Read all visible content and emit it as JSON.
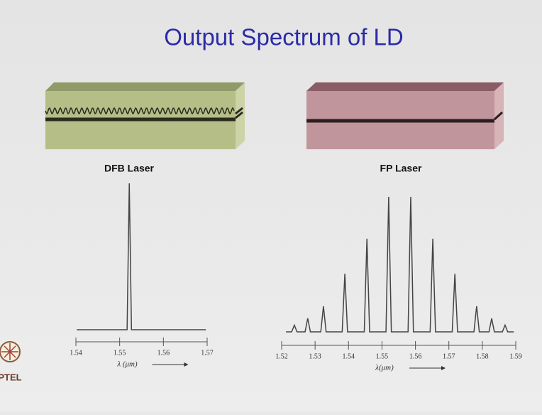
{
  "title": "Output Spectrum of LD",
  "logo_text": "PTEL",
  "chart_data": [
    {
      "type": "line",
      "title": "DFB Laser",
      "xlabel": "λ (μm)",
      "color": "#444444",
      "x": [
        1.5402,
        1.5517,
        1.5522,
        1.5527,
        1.5697
      ],
      "values": [
        0,
        0,
        1,
        0,
        0
      ],
      "xlim": [
        1.54,
        1.57
      ],
      "xticks": [
        1.54,
        1.55,
        1.56,
        1.57
      ],
      "ylim": [
        0,
        1
      ]
    },
    {
      "type": "line",
      "title": "FP Laser",
      "xlabel": "λ(μm)",
      "color": "#444444",
      "x": [
        1.5213,
        1.523,
        1.5238,
        1.5246,
        1.527,
        1.5278,
        1.5286,
        1.5317,
        1.5325,
        1.5333,
        1.5381,
        1.5389,
        1.5397,
        1.5447,
        1.5455,
        1.5463,
        1.5512,
        1.552,
        1.5528,
        1.5578,
        1.5586,
        1.5594,
        1.5644,
        1.5652,
        1.566,
        1.571,
        1.5718,
        1.5726,
        1.5775,
        1.5783,
        1.5791,
        1.582,
        1.5828,
        1.5836,
        1.586,
        1.5868,
        1.5876,
        1.5894
      ],
      "values": [
        0,
        0,
        0.05,
        0,
        0,
        0.1,
        0,
        0,
        0.19,
        0,
        0,
        0.43,
        0,
        0,
        0.69,
        0,
        0,
        1,
        0,
        0,
        1,
        0,
        0,
        0.69,
        0,
        0,
        0.43,
        0,
        0,
        0.19,
        0,
        0,
        0.1,
        0,
        0,
        0.05,
        0,
        0
      ],
      "xlim": [
        1.52,
        1.59
      ],
      "xticks": [
        1.52,
        1.53,
        1.54,
        1.55,
        1.56,
        1.57,
        1.58,
        1.59
      ],
      "ylim": [
        0,
        1
      ]
    }
  ]
}
